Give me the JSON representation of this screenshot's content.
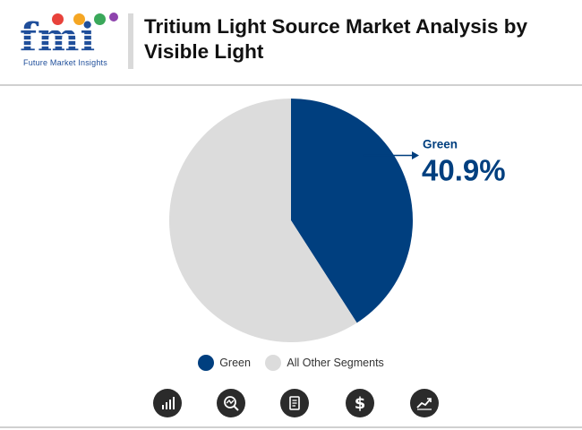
{
  "brand": {
    "logo_text": "fmi",
    "logo_subtitle": "Future Market Insights",
    "colors": [
      "#e8423b",
      "#f5a623",
      "#3aa85a",
      "#8e44ad"
    ]
  },
  "title": "Tritium Light Source Market Analysis by Visible Light",
  "chart_data": {
    "type": "pie",
    "slices": [
      {
        "label": "Green",
        "value": 40.9,
        "color": "#003f7f"
      },
      {
        "label": "All Other Segments",
        "value": 59.1,
        "color": "#dcdcdc"
      }
    ],
    "callout": {
      "label": "Green",
      "value_text": "40.9%"
    },
    "legend": [
      "Green",
      "All Other Segments"
    ],
    "legend_position": "bottom"
  },
  "footer_icons": [
    "bar-chart-icon",
    "magnifier-chart-icon",
    "report-document-icon",
    "dollar-icon",
    "trend-line-icon"
  ]
}
